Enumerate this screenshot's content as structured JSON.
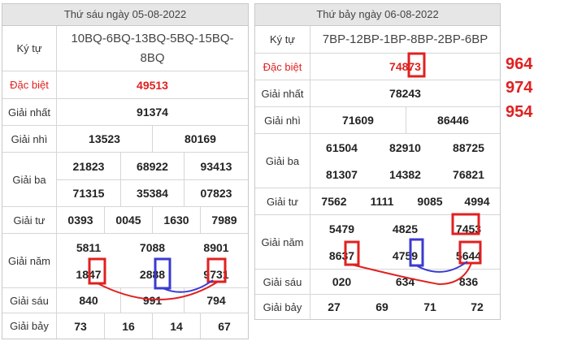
{
  "left": {
    "header": "Thứ sáu ngày 05-08-2022",
    "kytu_label": "Ký tự",
    "kytu_value": "10BQ-6BQ-13BQ-5BQ-15BQ-8BQ",
    "rows": {
      "dacbiet": {
        "label": "Đặc biệt",
        "values": [
          "49513"
        ]
      },
      "nhat": {
        "label": "Giải nhất",
        "values": [
          "91374"
        ]
      },
      "nhi": {
        "label": "Giải nhì",
        "values": [
          "13523",
          "80169"
        ]
      },
      "ba": {
        "label": "Giải ba",
        "values": [
          "21823",
          "68922",
          "93413",
          "71315",
          "35384",
          "07823"
        ]
      },
      "tu": {
        "label": "Giải tư",
        "values": [
          "0393",
          "0045",
          "1630",
          "7989"
        ]
      },
      "nam": {
        "label": "Giải năm",
        "values": [
          "5811",
          "7088",
          "8901",
          "1847",
          "2888",
          "9731"
        ]
      },
      "sau": {
        "label": "Giải sáu",
        "values": [
          "840",
          "991",
          "794"
        ]
      },
      "bay": {
        "label": "Giải bảy",
        "values": [
          "73",
          "16",
          "14",
          "67"
        ]
      }
    }
  },
  "right": {
    "header": "Thứ bảy ngày 06-08-2022",
    "kytu_label": "Ký tự",
    "kytu_value": "7BP-12BP-1BP-8BP-2BP-6BP",
    "rows": {
      "dacbiet": {
        "label": "Đặc biệt",
        "values": [
          "74873"
        ]
      },
      "nhat": {
        "label": "Giải nhất",
        "values": [
          "78243"
        ]
      },
      "nhi": {
        "label": "Giải nhì",
        "values": [
          "71609",
          "86446"
        ]
      },
      "ba": {
        "label": "Giải ba",
        "values": [
          "61504",
          "82910",
          "88725",
          "81307",
          "14382",
          "76821"
        ]
      },
      "tu": {
        "label": "Giải tư",
        "values": [
          "7562",
          "1111",
          "9085",
          "4994"
        ]
      },
      "nam": {
        "label": "Giải năm",
        "values": [
          "5479",
          "4825",
          "7453",
          "8637",
          "4759",
          "5644"
        ]
      },
      "sau": {
        "label": "Giải sáu",
        "values": [
          "020",
          "634",
          "836"
        ]
      },
      "bay": {
        "label": "Giải bảy",
        "values": [
          "27",
          "69",
          "71",
          "72"
        ]
      }
    }
  },
  "annotations": [
    "964",
    "974",
    "954"
  ],
  "colors": {
    "highlight_red": "#e02020",
    "highlight_blue": "#3a3ad0",
    "header_bg": "#e6e6e6"
  }
}
